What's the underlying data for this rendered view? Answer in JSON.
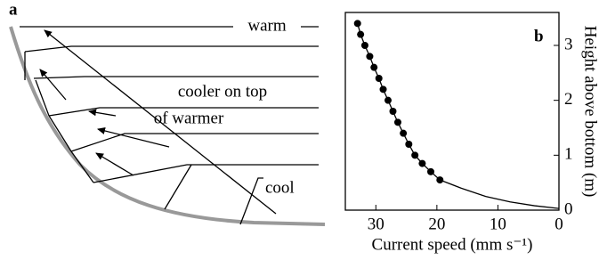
{
  "panel_a": {
    "label": "a",
    "warm": "warm",
    "cooler_1": "cooler on top",
    "cooler_2": "of warmer",
    "cool": "cool"
  },
  "chart_data": {
    "type": "line",
    "panel_label": "b",
    "x_label": "Current speed  (mm s⁻¹)",
    "y_label": "Height above bottom (m)",
    "xlim": [
      35,
      0
    ],
    "xticks": [
      30,
      20,
      10,
      0
    ],
    "ylim": [
      0,
      3.6
    ],
    "yticks": [
      0,
      1,
      2,
      3
    ],
    "series": [
      {
        "color": "#000000",
        "marker": false,
        "x": [
          33,
          32.5,
          31.8,
          31,
          30.3,
          29.5,
          28.8,
          28,
          27.2,
          26.4,
          25.5,
          24.6,
          23.6,
          22.4,
          21,
          19.5,
          16,
          12,
          8,
          4,
          0
        ],
        "values": [
          3.4,
          3.2,
          3,
          2.8,
          2.6,
          2.4,
          2.2,
          2,
          1.8,
          1.6,
          1.4,
          1.2,
          1,
          0.85,
          0.7,
          0.55,
          0.4,
          0.25,
          0.15,
          0.08,
          0.03
        ]
      },
      {
        "color": "#000000",
        "marker": true,
        "x": [
          33,
          32.5,
          31.8,
          31,
          30.3,
          29.5,
          28.8,
          28,
          27.2,
          26.4,
          25.5,
          24.6,
          23.6,
          22.4,
          21,
          19.5
        ],
        "values": [
          3.4,
          3.2,
          3,
          2.8,
          2.6,
          2.4,
          2.2,
          2,
          1.8,
          1.6,
          1.4,
          1.2,
          1,
          0.85,
          0.7,
          0.55
        ]
      }
    ]
  }
}
